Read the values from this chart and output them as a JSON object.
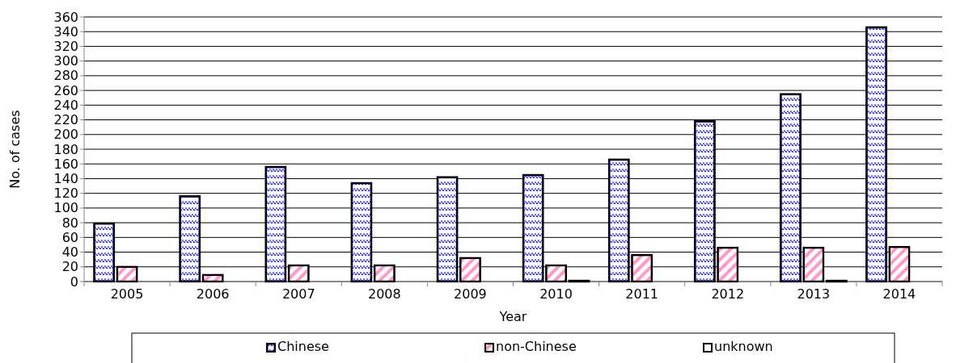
{
  "chart_data": {
    "type": "bar",
    "xlabel": "Year",
    "ylabel": "No. of cases",
    "categories": [
      "2005",
      "2006",
      "2007",
      "2008",
      "2009",
      "2010",
      "2011",
      "2012",
      "2013",
      "2014"
    ],
    "series": [
      {
        "name": "Chinese",
        "color": "#0000ff",
        "values": [
          79,
          116,
          156,
          134,
          142,
          145,
          166,
          218,
          255,
          346
        ]
      },
      {
        "name": "non-Chinese",
        "color": "#ff99cc",
        "values": [
          20,
          9,
          22,
          22,
          32,
          22,
          36,
          46,
          46,
          47
        ]
      },
      {
        "name": "unknown",
        "color": "#ffffff",
        "values": [
          0,
          0,
          0,
          0,
          0,
          1,
          0,
          0,
          1,
          0
        ]
      }
    ],
    "ylim": [
      0,
      360
    ],
    "yticks": [
      0,
      20,
      40,
      60,
      80,
      100,
      120,
      140,
      160,
      180,
      200,
      220,
      240,
      260,
      280,
      300,
      320,
      340,
      360
    ],
    "grid": "y",
    "legend": "bottom"
  }
}
